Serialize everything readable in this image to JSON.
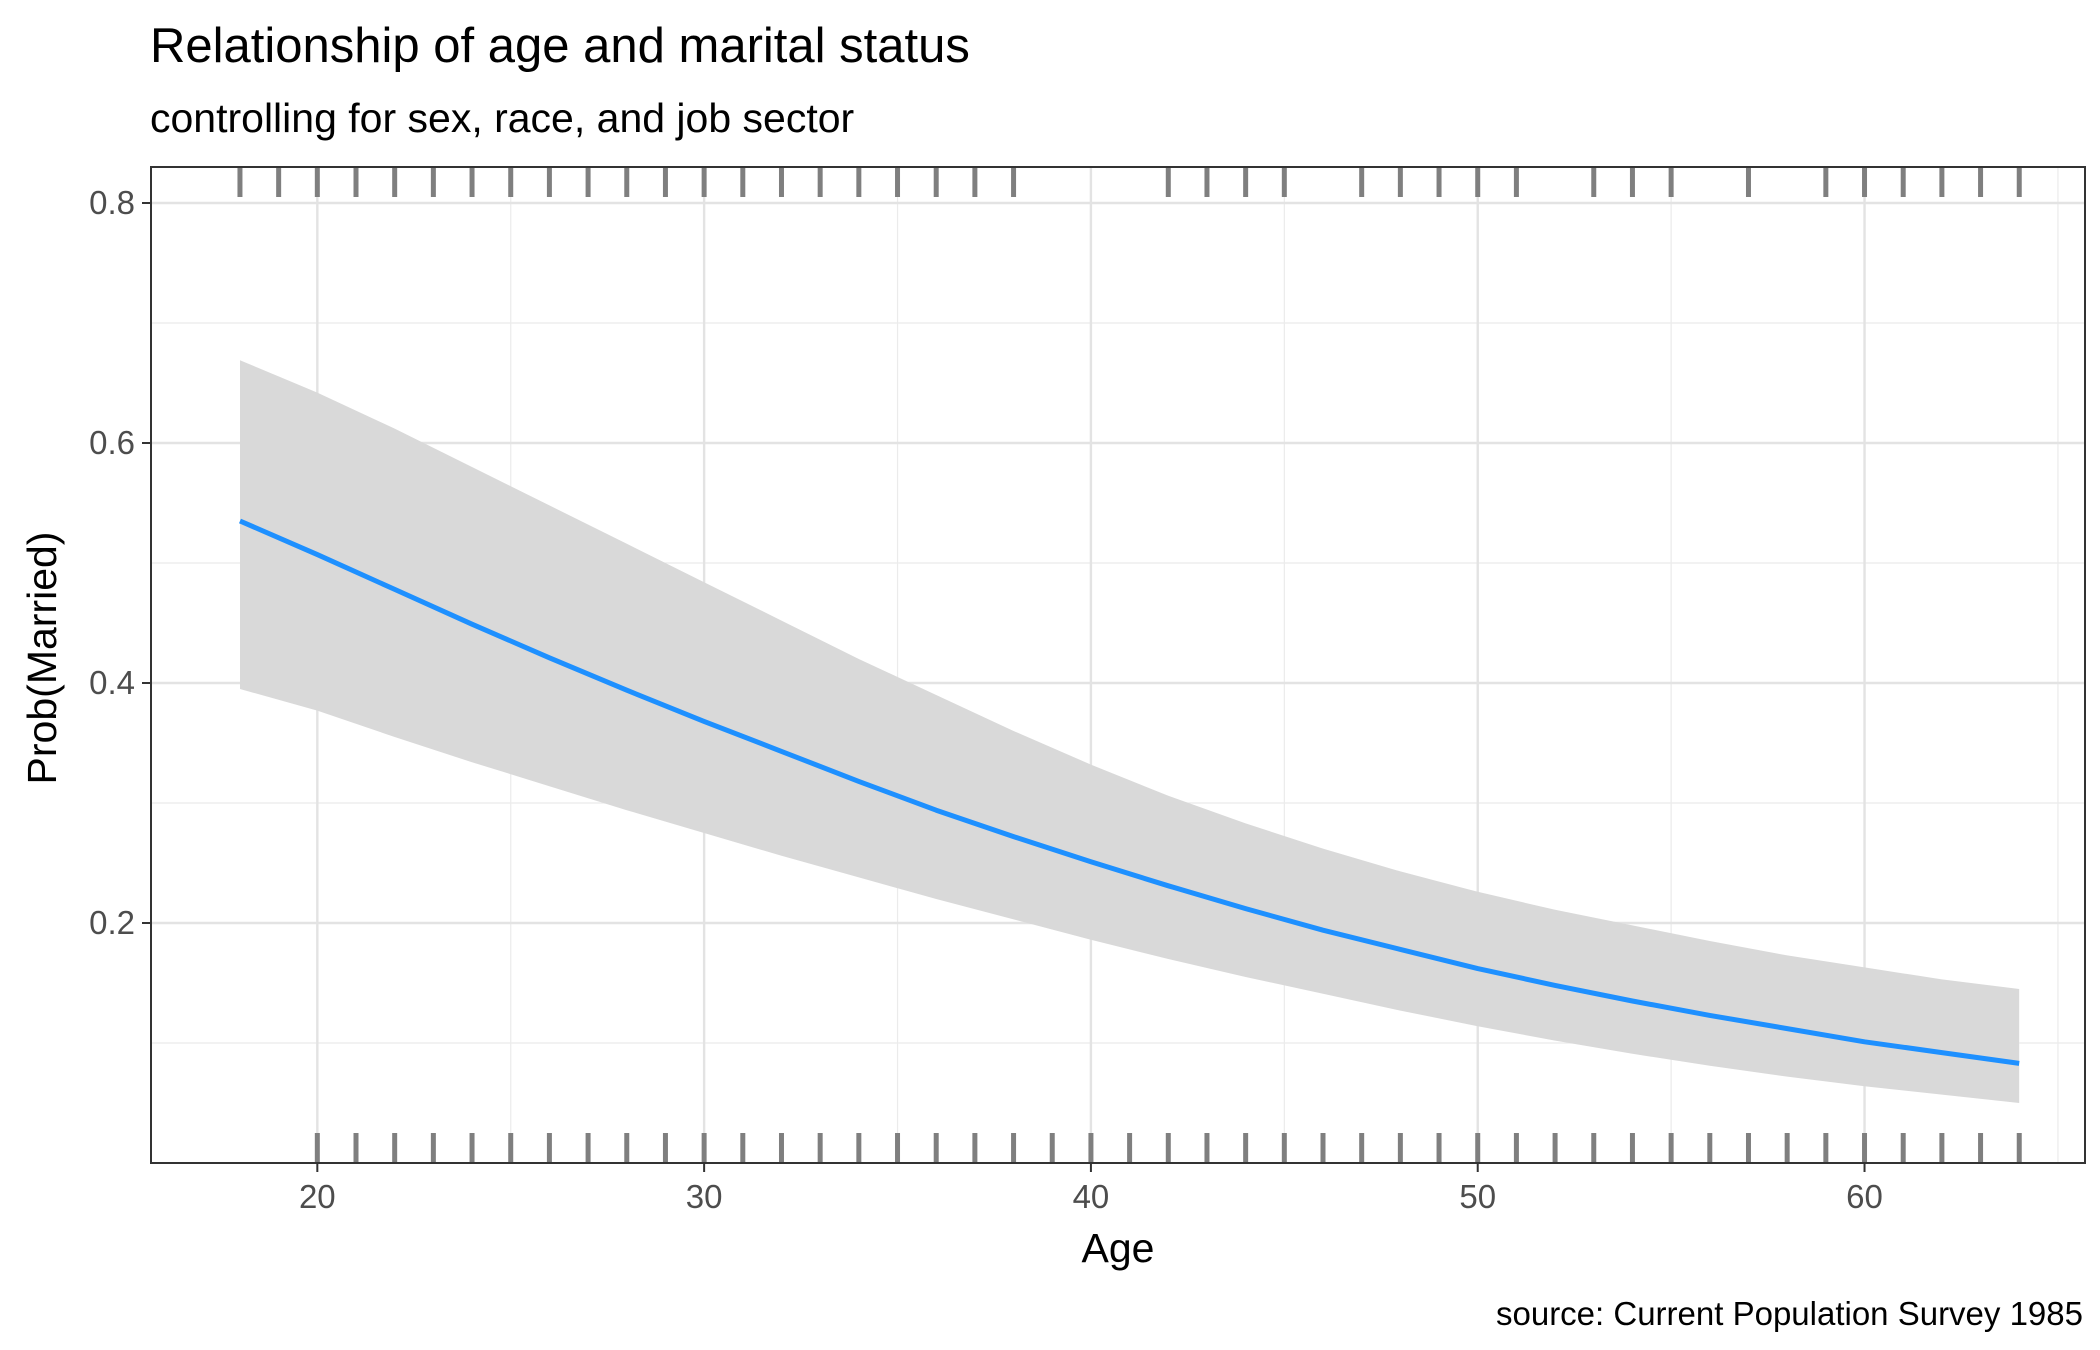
{
  "chart_data": {
    "type": "line",
    "title": "Relationship of age and marital status",
    "subtitle": "controlling for sex, race, and job sector",
    "xlabel": "Age",
    "ylabel": "Prob(Married)",
    "caption": "source: Current Population Survey 1985",
    "xlim": [
      15.7,
      65.7
    ],
    "ylim": [
      0.0,
      0.83
    ],
    "x_ticks": [
      20,
      30,
      40,
      50,
      60
    ],
    "y_ticks": [
      0.2,
      0.4,
      0.6,
      0.8
    ],
    "x_tick_labels": [
      "20",
      "30",
      "40",
      "50",
      "60"
    ],
    "y_tick_labels": [
      "0.2",
      "0.4",
      "0.6",
      "0.8"
    ],
    "x_minor_ticks": [
      15,
      25,
      35,
      45,
      55,
      65
    ],
    "y_minor_ticks": [
      0.1,
      0.3,
      0.5,
      0.7
    ],
    "grid": true,
    "line_color": "#1e90ff",
    "band_color": "#d9d9d9",
    "rug_color": "#7f7f7f",
    "series": [
      {
        "x": [
          18,
          20,
          22,
          24,
          26,
          28,
          30,
          32,
          34,
          36,
          38,
          40,
          42,
          44,
          46,
          48,
          50,
          52,
          54,
          56,
          58,
          60,
          62,
          64
        ],
        "y": [
          0.535,
          0.507,
          0.478,
          0.449,
          0.421,
          0.394,
          0.368,
          0.343,
          0.318,
          0.294,
          0.272,
          0.251,
          0.231,
          0.212,
          0.194,
          0.178,
          0.162,
          0.148,
          0.135,
          0.123,
          0.112,
          0.101,
          0.092,
          0.083
        ],
        "lower": [
          0.395,
          0.377,
          0.355,
          0.334,
          0.314,
          0.294,
          0.275,
          0.256,
          0.238,
          0.22,
          0.203,
          0.186,
          0.17,
          0.155,
          0.141,
          0.127,
          0.114,
          0.102,
          0.091,
          0.081,
          0.072,
          0.064,
          0.057,
          0.05
        ],
        "upper": [
          0.669,
          0.642,
          0.612,
          0.58,
          0.548,
          0.516,
          0.484,
          0.452,
          0.42,
          0.39,
          0.36,
          0.332,
          0.306,
          0.283,
          0.262,
          0.243,
          0.226,
          0.211,
          0.198,
          0.185,
          0.173,
          0.163,
          0.153,
          0.145
        ]
      }
    ],
    "rug_top": [
      18,
      19,
      20,
      21,
      22,
      23,
      24,
      25,
      26,
      27,
      28,
      29,
      30,
      31,
      32,
      33,
      34,
      35,
      36,
      37,
      38,
      42,
      43,
      44,
      45,
      47,
      48,
      49,
      50,
      51,
      53,
      54,
      55,
      57,
      59,
      60,
      61,
      62,
      63,
      64
    ],
    "rug_bottom": [
      20,
      21,
      22,
      23,
      24,
      25,
      26,
      27,
      28,
      29,
      30,
      31,
      32,
      33,
      34,
      35,
      36,
      37,
      38,
      39,
      40,
      41,
      42,
      43,
      44,
      45,
      46,
      47,
      48,
      49,
      50,
      51,
      52,
      53,
      54,
      55,
      56,
      57,
      58,
      59,
      60,
      61,
      62,
      63,
      64
    ]
  }
}
